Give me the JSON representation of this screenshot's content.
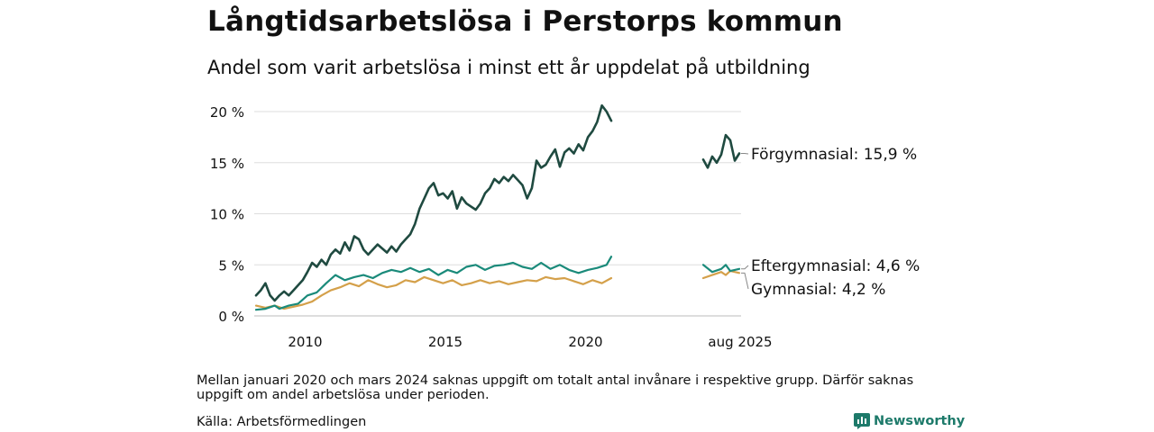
{
  "chart_data": {
    "type": "line",
    "title": "Långtidsarbetslösa i Perstorps kommun",
    "subtitle": "Andel som varit arbetslösa i minst ett år uppdelat på utbildning",
    "y_ticks": [
      "0 %",
      "5 %",
      "10 %",
      "15 %",
      "20 %"
    ],
    "ylim": [
      0,
      20
    ],
    "x_ticks": [
      "2010",
      "2015",
      "2020",
      "aug 2025"
    ],
    "grid": "horizontal",
    "series": [
      {
        "name": "Förgymnasial",
        "end_label": "Förgymnasial: 15,9 %",
        "color": "#1f4a40",
        "segments": [
          [
            [
              "2008-04",
              2.0
            ],
            [
              "2008-06",
              2.5
            ],
            [
              "2008-08",
              3.2
            ],
            [
              "2008-10",
              2.0
            ],
            [
              "2008-12",
              1.5
            ],
            [
              "2009-02",
              2.0
            ],
            [
              "2009-04",
              2.4
            ],
            [
              "2009-06",
              2.0
            ],
            [
              "2009-08",
              2.5
            ],
            [
              "2009-10",
              3.0
            ],
            [
              "2009-12",
              3.5
            ],
            [
              "2010-02",
              4.3
            ],
            [
              "2010-04",
              5.2
            ],
            [
              "2010-06",
              4.8
            ],
            [
              "2010-08",
              5.5
            ],
            [
              "2010-10",
              5.0
            ],
            [
              "2010-12",
              6.0
            ],
            [
              "2011-02",
              6.5
            ],
            [
              "2011-04",
              6.1
            ],
            [
              "2011-06",
              7.2
            ],
            [
              "2011-08",
              6.4
            ],
            [
              "2011-10",
              7.8
            ],
            [
              "2011-12",
              7.5
            ],
            [
              "2012-02",
              6.5
            ],
            [
              "2012-04",
              6.0
            ],
            [
              "2012-06",
              6.5
            ],
            [
              "2012-08",
              7.0
            ],
            [
              "2012-10",
              6.6
            ],
            [
              "2012-12",
              6.2
            ],
            [
              "2013-02",
              6.8
            ],
            [
              "2013-04",
              6.3
            ],
            [
              "2013-06",
              7.0
            ],
            [
              "2013-08",
              7.5
            ],
            [
              "2013-10",
              8.0
            ],
            [
              "2013-12",
              9.0
            ],
            [
              "2014-02",
              10.5
            ],
            [
              "2014-04",
              11.5
            ],
            [
              "2014-06",
              12.5
            ],
            [
              "2014-08",
              13.0
            ],
            [
              "2014-10",
              11.8
            ],
            [
              "2014-12",
              12.0
            ],
            [
              "2015-02",
              11.5
            ],
            [
              "2015-04",
              12.2
            ],
            [
              "2015-06",
              10.5
            ],
            [
              "2015-08",
              11.6
            ],
            [
              "2015-10",
              11.0
            ],
            [
              "2015-12",
              10.7
            ],
            [
              "2016-02",
              10.4
            ],
            [
              "2016-04",
              11.0
            ],
            [
              "2016-06",
              12.0
            ],
            [
              "2016-08",
              12.5
            ],
            [
              "2016-10",
              13.4
            ],
            [
              "2016-12",
              13.0
            ],
            [
              "2017-02",
              13.6
            ],
            [
              "2017-04",
              13.2
            ],
            [
              "2017-06",
              13.8
            ],
            [
              "2017-08",
              13.3
            ],
            [
              "2017-10",
              12.8
            ],
            [
              "2017-12",
              11.5
            ],
            [
              "2018-02",
              12.5
            ],
            [
              "2018-04",
              15.2
            ],
            [
              "2018-06",
              14.5
            ],
            [
              "2018-08",
              14.8
            ],
            [
              "2018-10",
              15.6
            ],
            [
              "2018-12",
              16.3
            ],
            [
              "2019-02",
              14.6
            ],
            [
              "2019-04",
              16.0
            ],
            [
              "2019-06",
              16.4
            ],
            [
              "2019-08",
              15.9
            ],
            [
              "2019-10",
              16.8
            ],
            [
              "2019-12",
              16.2
            ],
            [
              "2020-02",
              17.5
            ],
            [
              "2020-04",
              18.1
            ],
            [
              "2020-06",
              19.0
            ],
            [
              "2020-08",
              20.6
            ],
            [
              "2020-10",
              20.0
            ],
            [
              "2020-12",
              19.1
            ]
          ],
          [
            [
              "2024-04",
              15.3
            ],
            [
              "2024-06",
              14.5
            ],
            [
              "2024-08",
              15.6
            ],
            [
              "2024-10",
              15.0
            ],
            [
              "2024-12",
              15.8
            ],
            [
              "2025-02",
              17.7
            ],
            [
              "2025-04",
              17.2
            ],
            [
              "2025-06",
              15.2
            ],
            [
              "2025-08",
              15.9
            ]
          ]
        ]
      },
      {
        "name": "Eftergymnasial",
        "end_label": "Eftergymnasial:  4,6 %",
        "color": "#1a8a7a",
        "segments": [
          [
            [
              "2008-04",
              0.6
            ],
            [
              "2008-08",
              0.7
            ],
            [
              "2008-12",
              1.0
            ],
            [
              "2009-02",
              0.7
            ],
            [
              "2009-06",
              1.0
            ],
            [
              "2009-10",
              1.2
            ],
            [
              "2010-02",
              2.0
            ],
            [
              "2010-06",
              2.3
            ],
            [
              "2010-10",
              3.2
            ],
            [
              "2011-02",
              4.0
            ],
            [
              "2011-06",
              3.5
            ],
            [
              "2011-10",
              3.8
            ],
            [
              "2012-02",
              4.0
            ],
            [
              "2012-06",
              3.7
            ],
            [
              "2012-10",
              4.2
            ],
            [
              "2013-02",
              4.5
            ],
            [
              "2013-06",
              4.3
            ],
            [
              "2013-10",
              4.7
            ],
            [
              "2014-02",
              4.3
            ],
            [
              "2014-06",
              4.6
            ],
            [
              "2014-10",
              4.0
            ],
            [
              "2015-02",
              4.5
            ],
            [
              "2015-06",
              4.2
            ],
            [
              "2015-10",
              4.8
            ],
            [
              "2016-02",
              5.0
            ],
            [
              "2016-06",
              4.5
            ],
            [
              "2016-10",
              4.9
            ],
            [
              "2017-02",
              5.0
            ],
            [
              "2017-06",
              5.2
            ],
            [
              "2017-10",
              4.8
            ],
            [
              "2018-02",
              4.6
            ],
            [
              "2018-06",
              5.2
            ],
            [
              "2018-10",
              4.6
            ],
            [
              "2019-02",
              5.0
            ],
            [
              "2019-06",
              4.5
            ],
            [
              "2019-10",
              4.2
            ],
            [
              "2020-02",
              4.5
            ],
            [
              "2020-06",
              4.7
            ],
            [
              "2020-10",
              5.0
            ],
            [
              "2020-12",
              5.8
            ]
          ],
          [
            [
              "2024-04",
              5.0
            ],
            [
              "2024-08",
              4.3
            ],
            [
              "2024-12",
              4.6
            ],
            [
              "2025-02",
              5.0
            ],
            [
              "2025-04",
              4.4
            ],
            [
              "2025-08",
              4.6
            ]
          ]
        ]
      },
      {
        "name": "Gymnasial",
        "end_label": "Gymnasial:  4,2 %",
        "color": "#d4a04a",
        "segments": [
          [
            [
              "2008-04",
              1.0
            ],
            [
              "2008-08",
              0.8
            ],
            [
              "2008-12",
              1.0
            ],
            [
              "2009-04",
              0.7
            ],
            [
              "2009-08",
              0.9
            ],
            [
              "2009-12",
              1.1
            ],
            [
              "2010-04",
              1.4
            ],
            [
              "2010-08",
              2.0
            ],
            [
              "2010-12",
              2.5
            ],
            [
              "2011-04",
              2.8
            ],
            [
              "2011-08",
              3.2
            ],
            [
              "2011-12",
              2.9
            ],
            [
              "2012-04",
              3.5
            ],
            [
              "2012-08",
              3.1
            ],
            [
              "2012-12",
              2.8
            ],
            [
              "2013-04",
              3.0
            ],
            [
              "2013-08",
              3.5
            ],
            [
              "2013-12",
              3.3
            ],
            [
              "2014-04",
              3.8
            ],
            [
              "2014-08",
              3.5
            ],
            [
              "2014-12",
              3.2
            ],
            [
              "2015-04",
              3.5
            ],
            [
              "2015-08",
              3.0
            ],
            [
              "2015-12",
              3.2
            ],
            [
              "2016-04",
              3.5
            ],
            [
              "2016-08",
              3.2
            ],
            [
              "2016-12",
              3.4
            ],
            [
              "2017-04",
              3.1
            ],
            [
              "2017-08",
              3.3
            ],
            [
              "2017-12",
              3.5
            ],
            [
              "2018-04",
              3.4
            ],
            [
              "2018-08",
              3.8
            ],
            [
              "2018-12",
              3.6
            ],
            [
              "2019-04",
              3.7
            ],
            [
              "2019-08",
              3.4
            ],
            [
              "2019-12",
              3.1
            ],
            [
              "2020-04",
              3.5
            ],
            [
              "2020-08",
              3.2
            ],
            [
              "2020-12",
              3.7
            ]
          ],
          [
            [
              "2024-04",
              3.7
            ],
            [
              "2024-08",
              4.0
            ],
            [
              "2024-12",
              4.3
            ],
            [
              "2025-02",
              4.0
            ],
            [
              "2025-04",
              4.4
            ],
            [
              "2025-08",
              4.2
            ]
          ]
        ]
      }
    ]
  },
  "footer": {
    "note": "Mellan januari 2020 och mars 2024 saknas uppgift om totalt antal invånare i respektive grupp. Därför saknas uppgift om andel arbetslösa under perioden.",
    "source": "Källa: Arbetsförmedlingen",
    "brand": "Newsworthy",
    "brand_icon": "newsworthy-logo-icon"
  }
}
